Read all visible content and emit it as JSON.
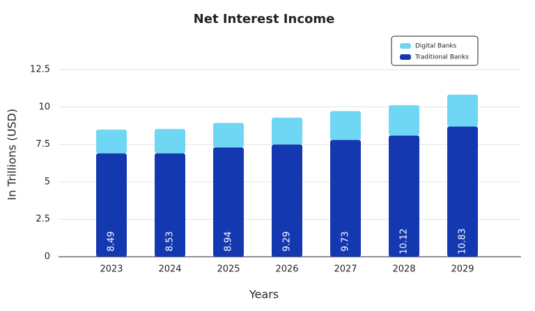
{
  "chart_data": {
    "type": "stacked_bar",
    "title": "Net Interest Income",
    "x_label": "Years",
    "y_label": "In Trillions (USD)",
    "categories": [
      "2023",
      "2024",
      "2025",
      "2026",
      "2027",
      "2028",
      "2029"
    ],
    "series": [
      {
        "name": "Traditional Banks",
        "color": "#1438b0",
        "values": [
          6.9,
          6.9,
          7.3,
          7.5,
          7.8,
          8.1,
          8.7
        ]
      },
      {
        "name": "Digital Banks",
        "color": "#6fd6f3",
        "values": [
          1.59,
          1.63,
          1.64,
          1.79,
          1.93,
          2.02,
          2.13
        ]
      }
    ],
    "totals": [
      8.49,
      8.53,
      8.94,
      9.29,
      9.73,
      10.12,
      10.83
    ],
    "ylim": [
      0,
      12.5
    ],
    "yticks": [
      0,
      2.5,
      5,
      7.5,
      10,
      12.5
    ],
    "grid": true,
    "legend": "top-right"
  }
}
